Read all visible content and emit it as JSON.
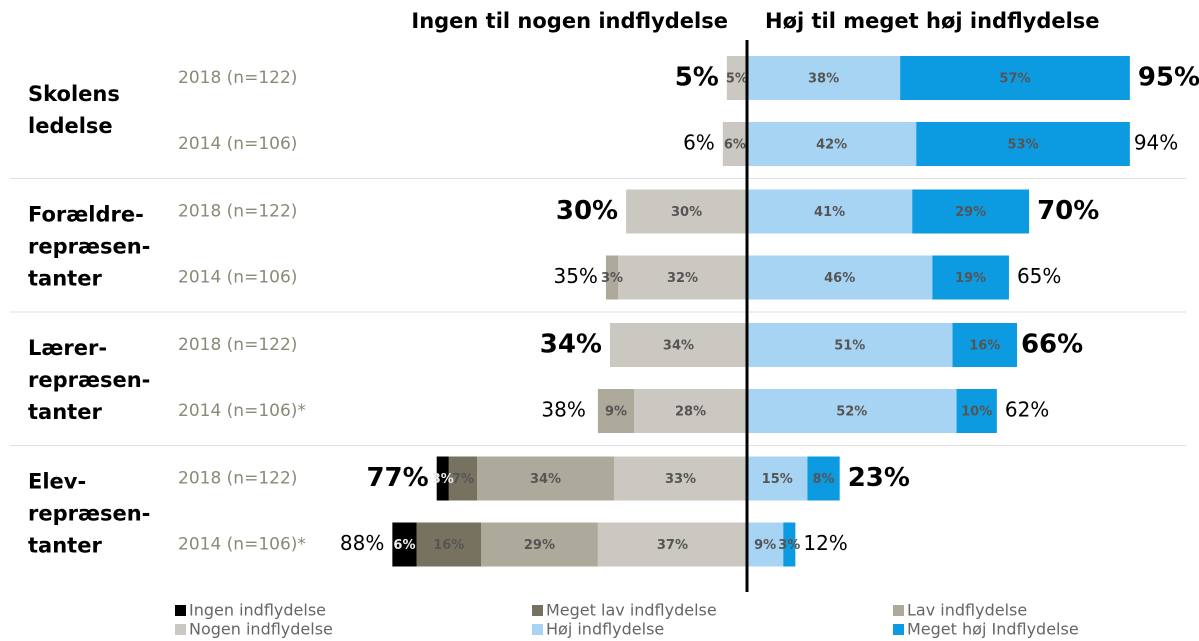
{
  "chart_data": {
    "type": "diverging-bar",
    "left_heading": "Ingen til nogen indflydelse",
    "right_heading": "Høj til meget høj indflydelse",
    "groups": [
      {
        "label": [
          "Skolens",
          "ledelse"
        ]
      },
      {
        "label": [
          "Forældre-",
          "repræsen-",
          "tanter"
        ]
      },
      {
        "label": [
          "Lærer-",
          "repræsen-",
          "tanter"
        ]
      },
      {
        "label": [
          "Elev-",
          "repræsen-",
          "tanter"
        ]
      }
    ],
    "categories": [
      "2018 (n=122)",
      "2014 (n=106)",
      "2018 (n=122)",
      "2014 (n=106)",
      "2018 (n=122)",
      "2014 (n=106)*",
      "2018 (n=122)",
      "2014 (n=106)*"
    ],
    "series": [
      {
        "name": "Ingen indflydelse",
        "color": "#000000",
        "side": "left",
        "values": [
          null,
          null,
          null,
          null,
          null,
          null,
          3,
          6
        ],
        "value_labels": [
          null,
          null,
          null,
          null,
          null,
          null,
          "3%",
          "6%"
        ]
      },
      {
        "name": "Meget lav indflydelse",
        "color": "#77725f",
        "side": "left",
        "values": [
          null,
          null,
          null,
          null,
          null,
          null,
          7,
          16
        ],
        "value_labels": [
          null,
          null,
          null,
          null,
          null,
          null,
          "7%",
          "16%"
        ]
      },
      {
        "name": "Lav indflydelse",
        "color": "#aeaa9b",
        "side": "left",
        "values": [
          null,
          null,
          null,
          3,
          null,
          9,
          34,
          29
        ],
        "value_labels": [
          null,
          null,
          null,
          "3%",
          null,
          "9%",
          "34%",
          "29%"
        ]
      },
      {
        "name": "Nogen indflydelse",
        "color": "#cac8c0",
        "side": "left",
        "values": [
          5,
          6,
          30,
          32,
          34,
          28,
          33,
          37
        ],
        "value_labels": [
          "5%",
          "6%",
          "30%",
          "32%",
          "34%",
          "28%",
          "33%",
          "37%"
        ]
      },
      {
        "name": "Høj indflydelse",
        "color": "#a8d4f4",
        "side": "right",
        "values": [
          38,
          42,
          41,
          46,
          51,
          52,
          15,
          9
        ],
        "value_labels": [
          "38%",
          "42%",
          "41%",
          "46%",
          "51%",
          "52%",
          "15%",
          "9%"
        ]
      },
      {
        "name": "Meget høj Indflydelse",
        "color": "#0c9be0",
        "side": "right",
        "values": [
          57,
          53,
          29,
          19,
          16,
          10,
          8,
          3
        ],
        "value_labels": [
          "57%",
          "53%",
          "29%",
          "19%",
          "16%",
          "10%",
          "8%",
          "3%"
        ]
      }
    ],
    "left_totals": {
      "values": [
        5,
        6,
        30,
        35,
        34,
        38,
        77,
        88
      ],
      "value_labels": [
        "5%",
        "6%",
        "30%",
        "35%",
        "34%",
        "38%",
        "77%",
        "88%"
      ]
    },
    "right_totals": {
      "values": [
        95,
        94,
        70,
        65,
        66,
        62,
        23,
        12
      ],
      "value_labels": [
        "95%",
        "94%",
        "70%",
        "65%",
        "66%",
        "62%",
        "23%",
        "12%"
      ]
    }
  }
}
